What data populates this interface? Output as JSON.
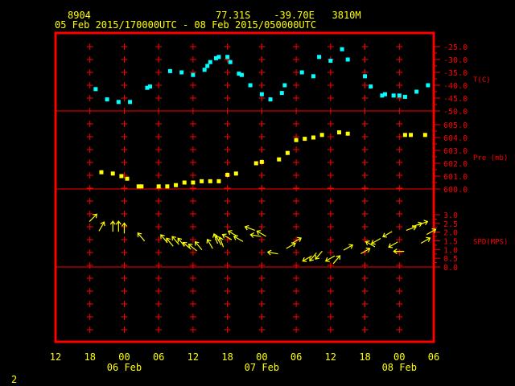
{
  "header": {
    "station_id": "8904",
    "location": "77.31S    -39.70E   3810M",
    "date_range": "05 Feb 2015/170000UTC - 08 Feb 2015/050000UTC"
  },
  "footer": {
    "page_number": "2"
  },
  "colors": {
    "frame": "#ff0000",
    "grid": "#ff0000",
    "temperature": "#00ffff",
    "pressure": "#ffff00",
    "wind": "#ffff00",
    "text": "#ffff00"
  },
  "chart_data": {
    "type": "scatter",
    "x_axis": {
      "hour_ticks": [
        "12",
        "18",
        "00",
        "06",
        "12",
        "18",
        "00",
        "06",
        "12",
        "18",
        "00",
        "06"
      ],
      "day_labels": [
        "06 Feb",
        "07 Feb",
        "08 Feb"
      ],
      "range_hours_from_05Feb_12UTC": [
        0,
        66
      ]
    },
    "panels": [
      {
        "name": "temperature",
        "label": "T(C)",
        "ylim": [
          -50,
          -25
        ],
        "ticks": [
          "-25.0",
          "-30.0",
          "-35.0",
          "-40.0",
          "-45.0",
          "-50.0"
        ],
        "tick_values": [
          -25,
          -30,
          -35,
          -40,
          -45,
          -50
        ],
        "points": [
          [
            7,
            -41.5
          ],
          [
            9,
            -45.5
          ],
          [
            11,
            -46.5
          ],
          [
            13,
            -46.5
          ],
          [
            16,
            -41
          ],
          [
            16.5,
            -40.5
          ],
          [
            20,
            -34.5
          ],
          [
            22,
            -35
          ],
          [
            24,
            -36
          ],
          [
            26,
            -34
          ],
          [
            26.5,
            -32.5
          ],
          [
            27,
            -31
          ],
          [
            28,
            -29.5
          ],
          [
            28.5,
            -29
          ],
          [
            30,
            -29
          ],
          [
            30.5,
            -31
          ],
          [
            32,
            -35.5
          ],
          [
            32.5,
            -36
          ],
          [
            34,
            -40
          ],
          [
            36,
            -43.5
          ],
          [
            37.5,
            -45.5
          ],
          [
            39.5,
            -43
          ],
          [
            40,
            -40
          ],
          [
            43,
            -35
          ],
          [
            45,
            -36.5
          ],
          [
            46,
            -29
          ],
          [
            48,
            -30.5
          ],
          [
            50,
            -26
          ],
          [
            51,
            -30
          ],
          [
            54,
            -36.5
          ],
          [
            55,
            -40.5
          ],
          [
            57,
            -44
          ],
          [
            57.5,
            -43.5
          ],
          [
            59,
            -44
          ],
          [
            60,
            -44
          ],
          [
            61,
            -44.5
          ],
          [
            63,
            -42.5
          ],
          [
            65,
            -40
          ]
        ]
      },
      {
        "name": "pressure",
        "label": "Pre (mb)",
        "ylim": [
          600,
          605
        ],
        "ticks": [
          "605.0",
          "604.0",
          "603.0",
          "602.0",
          "601.0",
          "600.0"
        ],
        "tick_values": [
          605,
          604,
          603,
          602,
          601,
          600
        ],
        "points": [
          [
            8,
            601.3
          ],
          [
            10,
            601.2
          ],
          [
            11.5,
            601.0
          ],
          [
            12.5,
            600.8
          ],
          [
            14.5,
            600.2
          ],
          [
            15,
            600.2
          ],
          [
            18,
            600.2
          ],
          [
            19.5,
            600.2
          ],
          [
            21,
            600.3
          ],
          [
            22.5,
            600.5
          ],
          [
            24,
            600.5
          ],
          [
            25.5,
            600.6
          ],
          [
            27,
            600.6
          ],
          [
            28.5,
            600.6
          ],
          [
            30,
            601.1
          ],
          [
            31.5,
            601.2
          ],
          [
            35,
            602.0
          ],
          [
            36,
            602.1
          ],
          [
            39,
            602.3
          ],
          [
            40.5,
            602.8
          ],
          [
            42,
            603.8
          ],
          [
            43.5,
            603.9
          ],
          [
            45,
            604.0
          ],
          [
            46.5,
            604.2
          ],
          [
            49.5,
            604.4
          ],
          [
            51,
            604.3
          ],
          [
            61,
            604.2
          ],
          [
            62,
            604.2
          ],
          [
            64.5,
            604.2
          ]
        ]
      },
      {
        "name": "wind",
        "label": "SPD(MPS)",
        "ylim": [
          0,
          3
        ],
        "ticks": [
          "3.0",
          "2.5",
          "2.0",
          "1.5",
          "1.0",
          "0.5",
          "0.0"
        ],
        "tick_values": [
          3,
          2.5,
          2,
          1.5,
          1,
          0.5,
          0
        ],
        "arrows": [
          [
            6.5,
            2.8,
            45
          ],
          [
            8,
            2.3,
            30
          ],
          [
            10,
            2.3,
            0
          ],
          [
            11,
            2.3,
            0
          ],
          [
            12,
            2.2,
            0
          ],
          [
            15,
            1.7,
            -40
          ],
          [
            19,
            1.6,
            -40
          ],
          [
            20,
            1.4,
            -40
          ],
          [
            21,
            1.5,
            -40
          ],
          [
            22,
            1.4,
            -40
          ],
          [
            23,
            1.2,
            -50
          ],
          [
            24,
            1.1,
            -50
          ],
          [
            25,
            1.2,
            -40
          ],
          [
            27,
            1.3,
            -30
          ],
          [
            28,
            1.6,
            -20
          ],
          [
            28.5,
            1.5,
            -30
          ],
          [
            29,
            1.4,
            -20
          ],
          [
            30,
            1.7,
            -60
          ],
          [
            31,
            1.9,
            -60
          ],
          [
            32,
            1.6,
            -60
          ],
          [
            34,
            2.2,
            -70
          ],
          [
            35,
            1.8,
            -80
          ],
          [
            36,
            1.9,
            -60
          ],
          [
            38,
            0.8,
            -80
          ],
          [
            41,
            1.2,
            60
          ],
          [
            42,
            1.5,
            60
          ],
          [
            44,
            0.5,
            -120
          ],
          [
            45,
            0.6,
            -140
          ],
          [
            46,
            0.7,
            -140
          ],
          [
            48,
            0.5,
            -120
          ],
          [
            49,
            0.4,
            40
          ],
          [
            51,
            1.1,
            60
          ],
          [
            54,
            0.9,
            60
          ],
          [
            55,
            1.3,
            -60
          ],
          [
            56,
            1.5,
            -120
          ],
          [
            58,
            1.9,
            -120
          ],
          [
            59,
            1.3,
            -120
          ],
          [
            60,
            0.9,
            -90
          ],
          [
            62,
            2.2,
            70
          ],
          [
            63,
            2.4,
            70
          ],
          [
            64,
            2.5,
            70
          ],
          [
            64.5,
            1.5,
            60
          ],
          [
            65.5,
            2.0,
            60
          ]
        ]
      }
    ]
  }
}
